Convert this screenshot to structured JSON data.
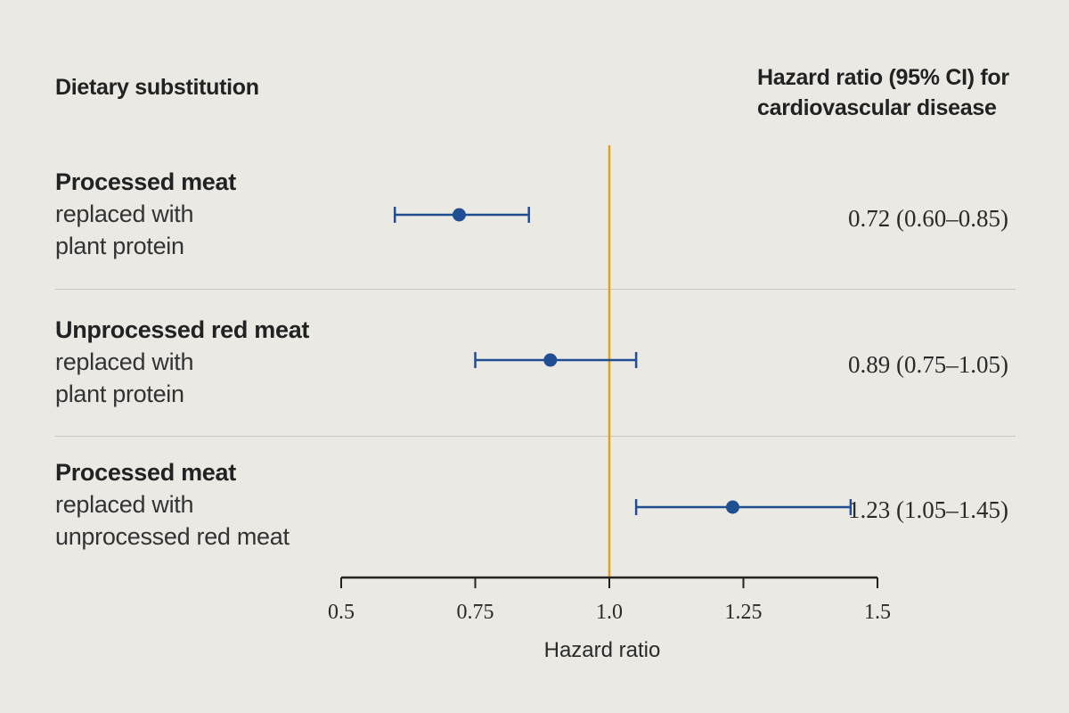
{
  "header": {
    "left": "Dietary substitution",
    "right": "Hazard ratio (95% CI) for cardiovascular disease"
  },
  "chart_data": {
    "type": "forest",
    "xlabel": "Hazard ratio",
    "xlim": [
      0.5,
      1.5
    ],
    "ticks": [
      "0.5",
      "0.75",
      "1.0",
      "1.25",
      "1.5"
    ],
    "tick_values": [
      0.5,
      0.75,
      1.0,
      1.25,
      1.5
    ],
    "reference_line": 1.0,
    "colors": {
      "point": "#1f4e93",
      "reference": "#e0a21c",
      "axis": "#222222"
    },
    "rows": [
      {
        "title": "Processed meat",
        "line1": "replaced with",
        "line2": "plant protein",
        "hr": 0.72,
        "lo": 0.6,
        "hi": 0.85,
        "ci_text": "0.72 (0.60–0.85)"
      },
      {
        "title": "Unprocessed red meat",
        "line1": "replaced with",
        "line2": "plant protein",
        "hr": 0.89,
        "lo": 0.75,
        "hi": 1.05,
        "ci_text": "0.89 (0.75–1.05)"
      },
      {
        "title": "Processed meat",
        "line1": "replaced with",
        "line2": "unprocessed red meat",
        "hr": 1.23,
        "lo": 1.05,
        "hi": 1.45,
        "ci_text": "1.23 (1.05–1.45)"
      }
    ]
  }
}
